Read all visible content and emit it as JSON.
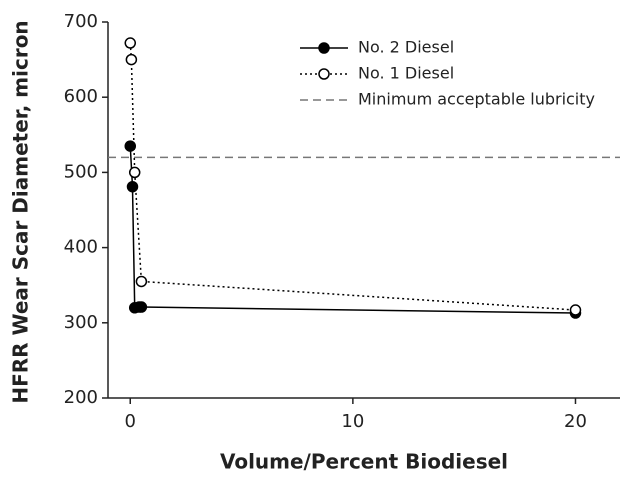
{
  "chart_data": {
    "type": "line",
    "xlabel": "Volume/Percent Biodiesel",
    "ylabel": "HFRR Wear Scar Diameter, micron",
    "xlim": [
      -1,
      22
    ],
    "xticks": [
      0,
      10,
      20
    ],
    "ylim": [
      200,
      700
    ],
    "yticks": [
      200,
      300,
      400,
      500,
      600,
      700
    ],
    "legend": "upper right",
    "series": [
      {
        "name": "No. 2 Diesel",
        "color": "#000000",
        "marker": "filled",
        "linestyle": "solid",
        "x": [
          0,
          0.1,
          0.2,
          0.4,
          0.5,
          20
        ],
        "values": [
          535,
          481,
          320,
          321,
          321,
          313
        ]
      },
      {
        "name": "No. 1 Diesel",
        "color": "#000000",
        "marker": "open",
        "linestyle": "dotted",
        "x": [
          0,
          0.05,
          0.2,
          0.5,
          20
        ],
        "values": [
          672,
          650,
          500,
          355,
          317
        ]
      }
    ],
    "reference_line": {
      "name": "Minimum acceptable lubricity",
      "value": 520,
      "color": "#777777",
      "linestyle": "dashed"
    }
  }
}
